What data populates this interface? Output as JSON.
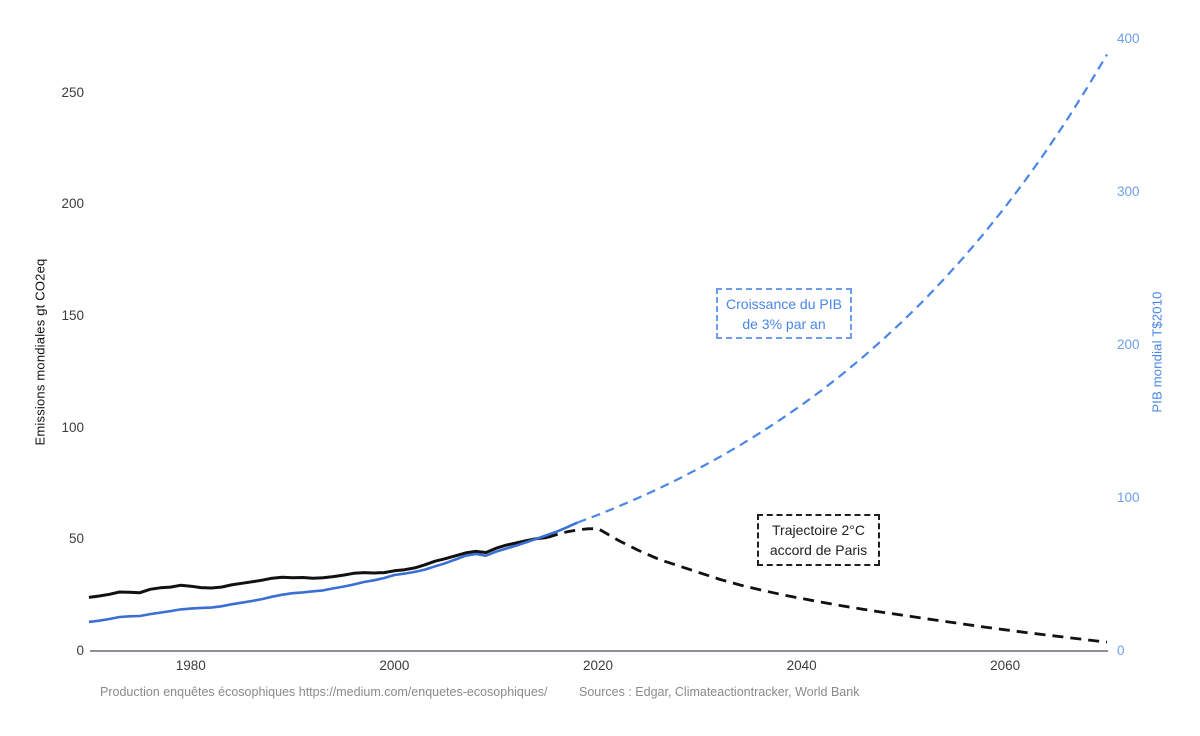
{
  "figure": {
    "background": "#ffffff",
    "caption": {
      "production": "Production enquêtes écosophiques https://medium.com/enquetes-ecosophiques/",
      "sources": "Sources : Edgar, Climateactiontracker, World Bank"
    }
  },
  "chart_data": {
    "type": "line",
    "title": "",
    "grid": false,
    "legend": "none",
    "x_axis": {
      "range": [
        1970,
        2070
      ],
      "ticks": [
        1980,
        2000,
        2020,
        2040,
        2060
      ],
      "axis_color": "#8a8f98",
      "tick_color": "#3c3c3c"
    },
    "y_left": {
      "label": "Emissions mondiales gt CO2eq",
      "range": [
        0,
        278
      ],
      "ticks": [
        0,
        50,
        100,
        150,
        200,
        250
      ],
      "tick_color": "#3c3c3c",
      "label_color": "#111111"
    },
    "y_right": {
      "label": "PIB mondial T$2010",
      "range": [
        0,
        406
      ],
      "ticks": [
        0,
        100,
        200,
        300,
        400
      ],
      "tick_color": "#6d9eeb",
      "label_color": "#4a86e8"
    },
    "annotations": [
      {
        "id": "gdp-growth-annotation",
        "lines": [
          "Croissance du PIB",
          "de 3% par an"
        ],
        "text_color": "#4a86e8",
        "border_color": "#6d9eeb",
        "border_style": "dashed"
      },
      {
        "id": "paris-trajectory-annotation",
        "lines": [
          "Trajectoire 2°C",
          "accord de Paris"
        ],
        "text_color": "#1f1f1f",
        "border_color": "#1f1f1f",
        "border_style": "dashed"
      }
    ],
    "series": [
      {
        "id": "emissions-historical-line",
        "name": "Emissions mondiales (historique)",
        "axis": "left",
        "style": "solid",
        "color": "#111111",
        "width": 3,
        "points": [
          [
            1970,
            24.0
          ],
          [
            1971,
            24.6
          ],
          [
            1972,
            25.4
          ],
          [
            1973,
            26.4
          ],
          [
            1974,
            26.3
          ],
          [
            1975,
            26.1
          ],
          [
            1976,
            27.6
          ],
          [
            1977,
            28.3
          ],
          [
            1978,
            28.6
          ],
          [
            1979,
            29.4
          ],
          [
            1980,
            29.0
          ],
          [
            1981,
            28.4
          ],
          [
            1982,
            28.2
          ],
          [
            1983,
            28.6
          ],
          [
            1984,
            29.6
          ],
          [
            1985,
            30.3
          ],
          [
            1986,
            31.0
          ],
          [
            1987,
            31.7
          ],
          [
            1988,
            32.6
          ],
          [
            1989,
            33.0
          ],
          [
            1990,
            32.8
          ],
          [
            1991,
            32.9
          ],
          [
            1992,
            32.6
          ],
          [
            1993,
            32.8
          ],
          [
            1994,
            33.3
          ],
          [
            1995,
            34.0
          ],
          [
            1996,
            34.8
          ],
          [
            1997,
            35.1
          ],
          [
            1998,
            34.9
          ],
          [
            1999,
            35.1
          ],
          [
            2000,
            35.9
          ],
          [
            2001,
            36.4
          ],
          [
            2002,
            37.2
          ],
          [
            2003,
            38.6
          ],
          [
            2004,
            40.2
          ],
          [
            2005,
            41.3
          ],
          [
            2006,
            42.6
          ],
          [
            2007,
            43.9
          ],
          [
            2008,
            44.6
          ],
          [
            2009,
            44.1
          ],
          [
            2010,
            46.0
          ],
          [
            2011,
            47.4
          ],
          [
            2012,
            48.4
          ],
          [
            2013,
            49.4
          ],
          [
            2014,
            50.3
          ],
          [
            2015,
            50.8
          ]
        ]
      },
      {
        "id": "emissions-2c-trajectory-line",
        "name": "Trajectoire 2°C accord de Paris",
        "axis": "left",
        "style": "dashed",
        "color": "#111111",
        "width": 2.8,
        "dash": "11 7",
        "points": [
          [
            2015,
            50.8
          ],
          [
            2016,
            52.2
          ],
          [
            2017,
            53.4
          ],
          [
            2018,
            54.2
          ],
          [
            2019,
            54.7
          ],
          [
            2020,
            54.8
          ],
          [
            2022,
            49.5
          ],
          [
            2024,
            45.0
          ],
          [
            2026,
            41.0
          ],
          [
            2028,
            38.0
          ],
          [
            2030,
            35.0
          ],
          [
            2032,
            32.0
          ],
          [
            2034,
            29.5
          ],
          [
            2036,
            27.3
          ],
          [
            2038,
            25.3
          ],
          [
            2040,
            23.5
          ],
          [
            2042,
            21.8
          ],
          [
            2044,
            20.2
          ],
          [
            2046,
            18.7
          ],
          [
            2048,
            17.3
          ],
          [
            2050,
            16.0
          ],
          [
            2052,
            14.6
          ],
          [
            2054,
            13.3
          ],
          [
            2056,
            12.0
          ],
          [
            2058,
            10.7
          ],
          [
            2060,
            9.5
          ],
          [
            2062,
            8.3
          ],
          [
            2064,
            7.2
          ],
          [
            2066,
            6.1
          ],
          [
            2068,
            5.0
          ],
          [
            2070,
            4.0
          ]
        ]
      },
      {
        "id": "gdp-historical-line",
        "name": "PIB mondial (historique)",
        "axis": "right",
        "style": "solid",
        "color": "#3b6fd4",
        "width": 2.6,
        "points": [
          [
            1970,
            19.0
          ],
          [
            1971,
            19.8
          ],
          [
            1972,
            20.9
          ],
          [
            1973,
            22.2
          ],
          [
            1974,
            22.7
          ],
          [
            1975,
            22.9
          ],
          [
            1976,
            24.1
          ],
          [
            1977,
            25.1
          ],
          [
            1978,
            26.1
          ],
          [
            1979,
            27.2
          ],
          [
            1980,
            27.7
          ],
          [
            1981,
            28.2
          ],
          [
            1982,
            28.4
          ],
          [
            1983,
            29.2
          ],
          [
            1984,
            30.5
          ],
          [
            1985,
            31.6
          ],
          [
            1986,
            32.7
          ],
          [
            1987,
            33.9
          ],
          [
            1988,
            35.5
          ],
          [
            1989,
            36.8
          ],
          [
            1990,
            37.8
          ],
          [
            1991,
            38.3
          ],
          [
            1992,
            39.0
          ],
          [
            1993,
            39.6
          ],
          [
            1994,
            40.9
          ],
          [
            1995,
            42.1
          ],
          [
            1996,
            43.5
          ],
          [
            1997,
            45.1
          ],
          [
            1998,
            46.2
          ],
          [
            1999,
            47.7
          ],
          [
            2000,
            49.7
          ],
          [
            2001,
            50.6
          ],
          [
            2002,
            51.7
          ],
          [
            2003,
            53.2
          ],
          [
            2004,
            55.4
          ],
          [
            2005,
            57.4
          ],
          [
            2006,
            59.8
          ],
          [
            2007,
            62.3
          ],
          [
            2008,
            63.4
          ],
          [
            2009,
            62.3
          ],
          [
            2010,
            65.0
          ],
          [
            2011,
            67.0
          ],
          [
            2012,
            69.0
          ],
          [
            2013,
            71.2
          ],
          [
            2014,
            73.5
          ],
          [
            2015,
            75.8
          ],
          [
            2016,
            78.2
          ],
          [
            2017,
            81.0
          ],
          [
            2018,
            84.0
          ]
        ]
      },
      {
        "id": "gdp-3pct-projection-line",
        "name": "Croissance du PIB de 3% par an",
        "axis": "right",
        "style": "dashed",
        "color": "#4a86e8",
        "width": 2.2,
        "dash": "9 6",
        "points": [
          [
            2018,
            84.0
          ],
          [
            2020,
            89.0
          ],
          [
            2022,
            94.5
          ],
          [
            2024,
            100.2
          ],
          [
            2026,
            106.3
          ],
          [
            2028,
            112.8
          ],
          [
            2030,
            119.7
          ],
          [
            2032,
            127.0
          ],
          [
            2034,
            134.7
          ],
          [
            2036,
            142.9
          ],
          [
            2038,
            151.6
          ],
          [
            2040,
            160.8
          ],
          [
            2042,
            170.6
          ],
          [
            2044,
            181.0
          ],
          [
            2046,
            192.0
          ],
          [
            2048,
            203.7
          ],
          [
            2050,
            216.1
          ],
          [
            2052,
            229.2
          ],
          [
            2054,
            243.2
          ],
          [
            2056,
            258.0
          ],
          [
            2058,
            273.7
          ],
          [
            2060,
            290.3
          ],
          [
            2062,
            308.0
          ],
          [
            2064,
            326.7
          ],
          [
            2066,
            346.6
          ],
          [
            2068,
            367.7
          ],
          [
            2070,
            390.0
          ]
        ]
      }
    ]
  }
}
